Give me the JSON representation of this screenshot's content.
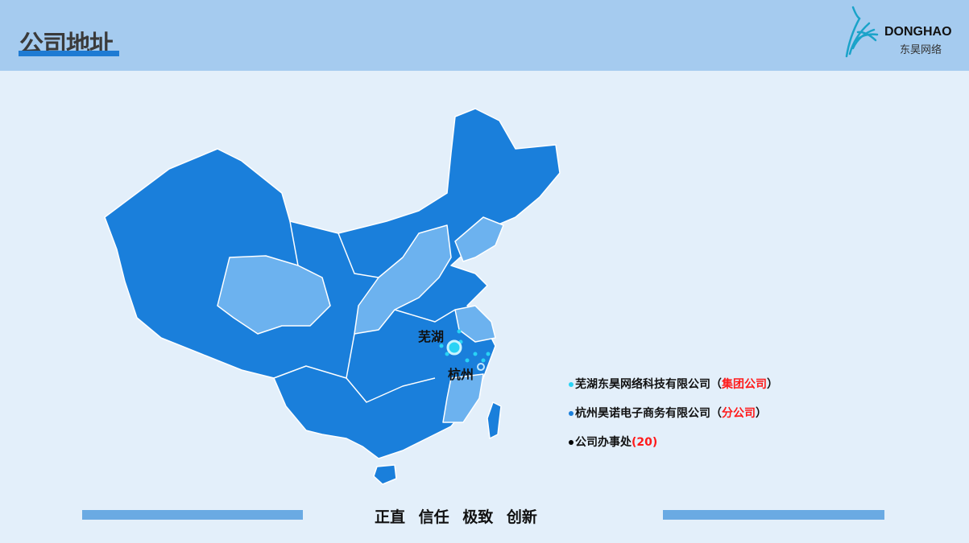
{
  "header": {
    "title": "公司地址",
    "logo_en": "DONGHAO",
    "logo_cn": "东昊网络"
  },
  "colors": {
    "header_bg": "#a5cbef",
    "map_dark": "#1a7fdb",
    "map_light": "#6cb2ef",
    "accent_red": "#ff1a1a"
  },
  "map": {
    "cities": [
      {
        "name": "芜湖"
      },
      {
        "name": "杭州"
      }
    ]
  },
  "legend": [
    {
      "name": "芜湖东昊网络科技有限公司",
      "paren_open": "（",
      "tag": "集团公司",
      "paren_close": "）",
      "dot_color": "#29d3f5"
    },
    {
      "name": "杭州昊诺电子商务有限公司",
      "paren_open": "（",
      "tag": "分公司",
      "paren_close": "）",
      "dot_color": "#1a7fdb"
    },
    {
      "name": "公司办事处",
      "paren_open": "(",
      "tag": "20",
      "paren_close": ")",
      "dot_color": "#000000"
    }
  ],
  "footer": {
    "motto": "正直 信任 极致 创新"
  }
}
